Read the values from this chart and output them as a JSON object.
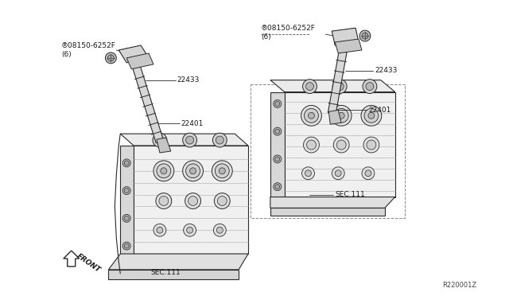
{
  "background_color": "#ffffff",
  "fig_width": 6.4,
  "fig_height": 3.72,
  "dpi": 100,
  "labels": {
    "part_08150_left": "®08150-6252F\n(6)",
    "part_08150_right": "®08150-6252F\n(6)",
    "part_22433_left": "22433",
    "part_22433_right": "22433",
    "part_22401_left": "22401",
    "part_22401_right": "22401",
    "sec111_left": "SEC.111",
    "sec111_right": "SEC.111",
    "front": "FRONT",
    "part_number": "R220001Z"
  },
  "text_color": "#1a1a1a",
  "line_color": "#2a2a2a"
}
